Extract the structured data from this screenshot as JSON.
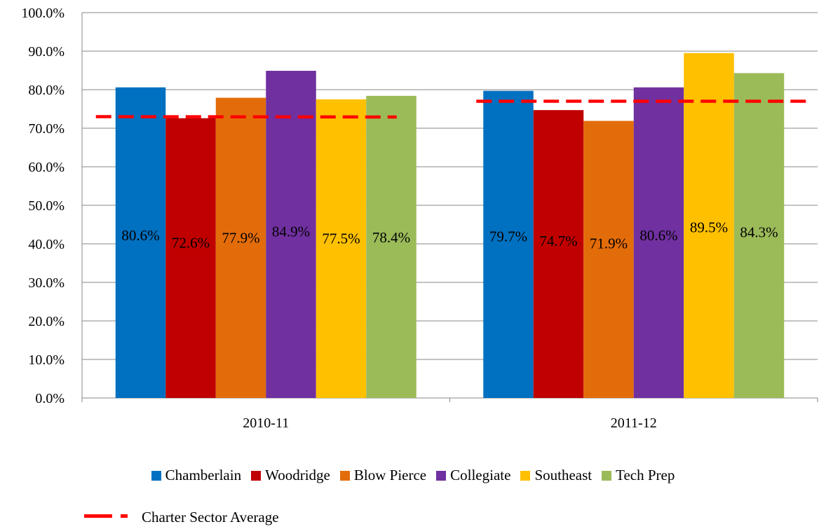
{
  "chart_data": {
    "type": "bar",
    "categories": [
      "2010-11",
      "2011-12"
    ],
    "series": [
      {
        "name": "Chamberlain",
        "color": "#0070c0",
        "values": [
          80.6,
          79.7
        ],
        "labels": [
          "80.6%",
          "79.7%"
        ]
      },
      {
        "name": "Woodridge",
        "color": "#c00000",
        "values": [
          72.6,
          74.7
        ],
        "labels": [
          "72.6%",
          "74.7%"
        ]
      },
      {
        "name": "Blow Pierce",
        "color": "#e36c0a",
        "values": [
          77.9,
          71.9
        ],
        "labels": [
          "77.9%",
          "71.9%"
        ]
      },
      {
        "name": "Collegiate",
        "color": "#7030a0",
        "values": [
          84.9,
          80.6
        ],
        "labels": [
          "84.9%",
          "80.6%"
        ]
      },
      {
        "name": "Southeast",
        "color": "#ffc000",
        "values": [
          77.5,
          89.5
        ],
        "labels": [
          "77.5%",
          "89.5%"
        ]
      },
      {
        "name": "Tech Prep",
        "color": "#9bbb59",
        "values": [
          78.4,
          84.3
        ],
        "labels": [
          "78.4%",
          "84.3%"
        ]
      }
    ],
    "average_line": {
      "name": "Charter Sector Average",
      "color": "#ff0000",
      "style": "dashed",
      "values": [
        73.0,
        77.0
      ]
    },
    "ylim": [
      0,
      100
    ],
    "yticks": [
      "0.0%",
      "10.0%",
      "20.0%",
      "30.0%",
      "40.0%",
      "50.0%",
      "60.0%",
      "70.0%",
      "80.0%",
      "90.0%",
      "100.0%"
    ],
    "grid": true,
    "legend_position": "bottom"
  }
}
